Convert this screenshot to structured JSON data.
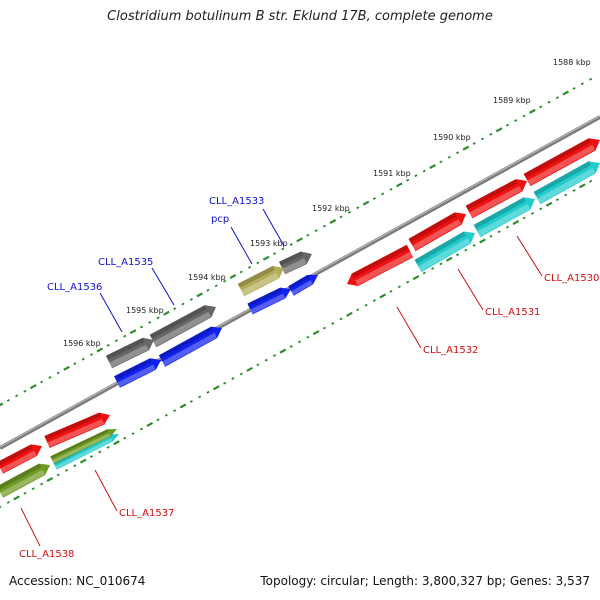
{
  "title": "Clostridium botulinum B str. Eklund 17B, complete genome",
  "footer": {
    "accession": "Accession: NC_010674",
    "topology": "Topology: circular; Length: 3,800,327 bp; Genes: 3,537"
  },
  "colors": {
    "backbone": "#8a8a8a",
    "ticks": "#2e8b2e",
    "gene_red": "#ee1111",
    "gene_cyan": "#22cccc",
    "gene_grey": "#666666",
    "gene_blue": "#1122ee",
    "gene_olive": "#6f9a23",
    "gene_khaki": "#b3ad5a",
    "label_blue": "#1010cc",
    "label_red": "#cc1111"
  },
  "scale_labels": [
    "1588 kbp",
    "1589 kbp",
    "1590 kbp",
    "1591 kbp",
    "1592 kbp",
    "1593 kbp",
    "1594 kbp",
    "1595 kbp",
    "1596 kbp"
  ],
  "gene_labels": [
    {
      "id": "label-cll-a1533",
      "text": "CLL_A1533",
      "color": "label_blue"
    },
    {
      "id": "label-pcp",
      "text": "pcp",
      "color": "label_blue"
    },
    {
      "id": "label-cll-a1535",
      "text": "CLL_A1535",
      "color": "label_blue"
    },
    {
      "id": "label-cll-a1536",
      "text": "CLL_A1536",
      "color": "label_blue"
    },
    {
      "id": "label-cll-a1530",
      "text": "CLL_A1530",
      "color": "label_red"
    },
    {
      "id": "label-cll-a1531",
      "text": "CLL_A1531",
      "color": "label_red"
    },
    {
      "id": "label-cll-a1532",
      "text": "CLL_A1532",
      "color": "label_red"
    },
    {
      "id": "label-cll-a1537",
      "text": "CLL_A1537",
      "color": "label_red"
    },
    {
      "id": "label-cll-a1538",
      "text": "CLL_A1538",
      "color": "label_red"
    }
  ]
}
